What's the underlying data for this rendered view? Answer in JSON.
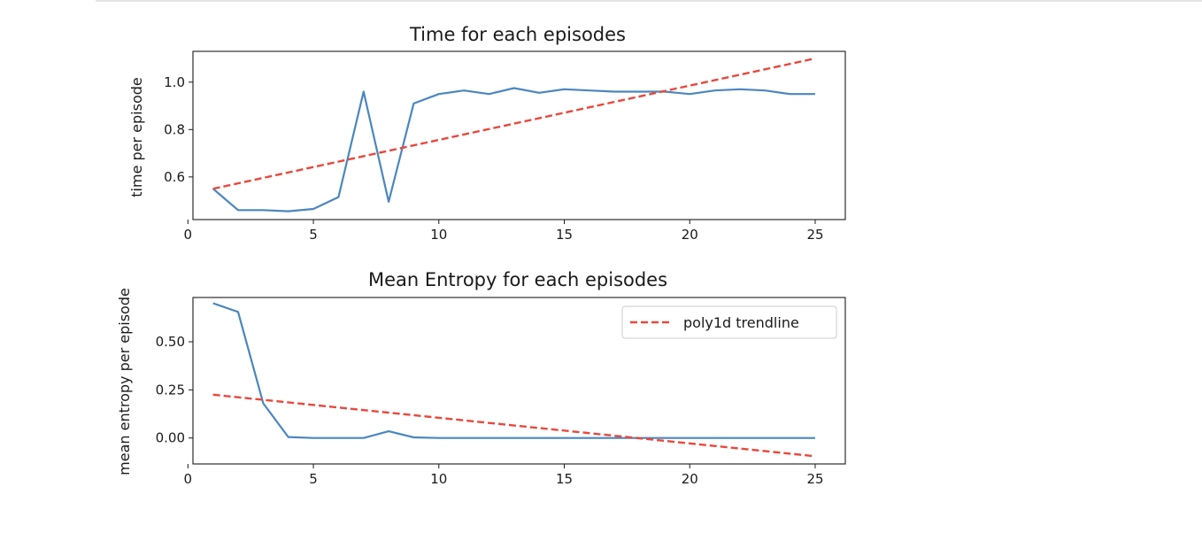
{
  "chart_data": [
    {
      "type": "line",
      "title": "Time for each episodes",
      "xlabel": "",
      "ylabel": "time per episode",
      "xlim": [
        0.2,
        26.2
      ],
      "ylim": [
        0.42,
        1.13
      ],
      "xticks": [
        0,
        5,
        10,
        15,
        20,
        25
      ],
      "yticks": [
        0.6,
        0.8,
        1.0
      ],
      "ytick_labels": [
        "0.6",
        "0.8",
        "1.0"
      ],
      "grid": false,
      "series": [
        {
          "color": "#4a86c0",
          "style": "solid",
          "x": [
            1,
            2,
            3,
            4,
            5,
            6,
            7,
            8,
            9,
            10,
            11,
            12,
            13,
            14,
            15,
            16,
            17,
            18,
            19,
            20,
            21,
            22,
            23,
            24,
            25
          ],
          "y": [
            0.55,
            0.46,
            0.46,
            0.455,
            0.465,
            0.515,
            0.96,
            0.495,
            0.91,
            0.95,
            0.965,
            0.95,
            0.975,
            0.955,
            0.97,
            0.965,
            0.96,
            0.96,
            0.96,
            0.95,
            0.965,
            0.97,
            0.965,
            0.95,
            0.95
          ]
        },
        {
          "color": "#e8483c",
          "style": "dashed",
          "x": [
            1,
            25
          ],
          "y": [
            0.55,
            1.1
          ]
        }
      ]
    },
    {
      "type": "line",
      "title": "Mean Entropy for each episodes",
      "xlabel": "",
      "ylabel": "mean entropy per episode",
      "xlim": [
        0.2,
        26.2
      ],
      "ylim": [
        -0.135,
        0.73
      ],
      "xticks": [
        0,
        5,
        10,
        15,
        20,
        25
      ],
      "yticks": [
        0.0,
        0.25,
        0.5
      ],
      "ytick_labels": [
        "0.00",
        "0.25",
        "0.50"
      ],
      "grid": false,
      "legend": {
        "position": "top-right",
        "entries": [
          {
            "label": "poly1d trendline",
            "series_index": 1
          }
        ]
      },
      "series": [
        {
          "color": "#4a86c0",
          "style": "solid",
          "x": [
            1,
            2,
            3,
            4,
            5,
            6,
            7,
            8,
            9,
            10,
            11,
            12,
            13,
            14,
            15,
            16,
            17,
            18,
            19,
            20,
            21,
            22,
            23,
            24,
            25
          ],
          "y": [
            0.7,
            0.655,
            0.18,
            0.005,
            0.0,
            0.0,
            0.0,
            0.035,
            0.003,
            0.0,
            0.0,
            0.0,
            0.0,
            0.0,
            0.0,
            0.0,
            0.0,
            0.0,
            0.0,
            0.0,
            0.0,
            0.0,
            0.0,
            0.0,
            0.0
          ]
        },
        {
          "name": "poly1d trendline",
          "color": "#e8483c",
          "style": "dashed",
          "x": [
            1,
            25
          ],
          "y": [
            0.225,
            -0.095
          ]
        }
      ]
    }
  ]
}
